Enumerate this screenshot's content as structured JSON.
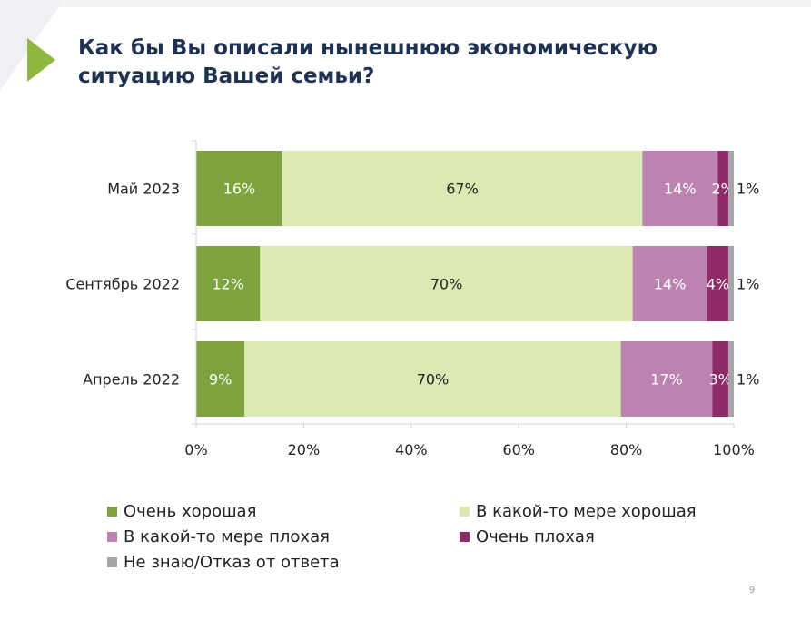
{
  "title": "Как бы Вы описали нынешнюю экономическую ситуацию Вашей семьи?",
  "page_number": "9",
  "chart_data": {
    "type": "bar",
    "orientation": "horizontal",
    "stacked": true,
    "normalized": true,
    "categories": [
      "Май 2023",
      "Сентябрь 2022",
      "Апрель 2022"
    ],
    "series": [
      {
        "name": "Очень хорошая",
        "color": "#7ea23e",
        "values": [
          16,
          12,
          9
        ],
        "labels": [
          "16%",
          "12%",
          "9%"
        ],
        "label_color": "#ffffff"
      },
      {
        "name": "В какой-то мере хорошая",
        "color": "#dbe9b2",
        "values": [
          67,
          70,
          70
        ],
        "labels": [
          "67%",
          "70%",
          "70%"
        ],
        "label_color": "#222222"
      },
      {
        "name": "В какой-то мере плохая",
        "color": "#bc83b0",
        "values": [
          14,
          14,
          17
        ],
        "labels": [
          "14%",
          "14%",
          "17%"
        ],
        "label_color": "#ffffff"
      },
      {
        "name": "Очень плохая",
        "color": "#8e2c6a",
        "values": [
          2,
          4,
          3
        ],
        "labels": [
          "2%",
          "4%",
          "3%"
        ],
        "label_color": "#ffffff"
      },
      {
        "name": "Не знаю/Отказ от ответа",
        "color": "#a6a6a6",
        "values": [
          1,
          1,
          1
        ],
        "labels": [
          "1%",
          "1%",
          "1%"
        ],
        "label_color": "#222222"
      }
    ],
    "x_ticks": [
      "0%",
      "20%",
      "40%",
      "60%",
      "80%",
      "100%"
    ],
    "xlim": [
      0,
      100
    ],
    "grid": false,
    "legend_position": "bottom"
  },
  "colors": {
    "title": "#1f3252",
    "accent_arrow": "#8cb83c",
    "corner_bg": "#eef0f4"
  }
}
